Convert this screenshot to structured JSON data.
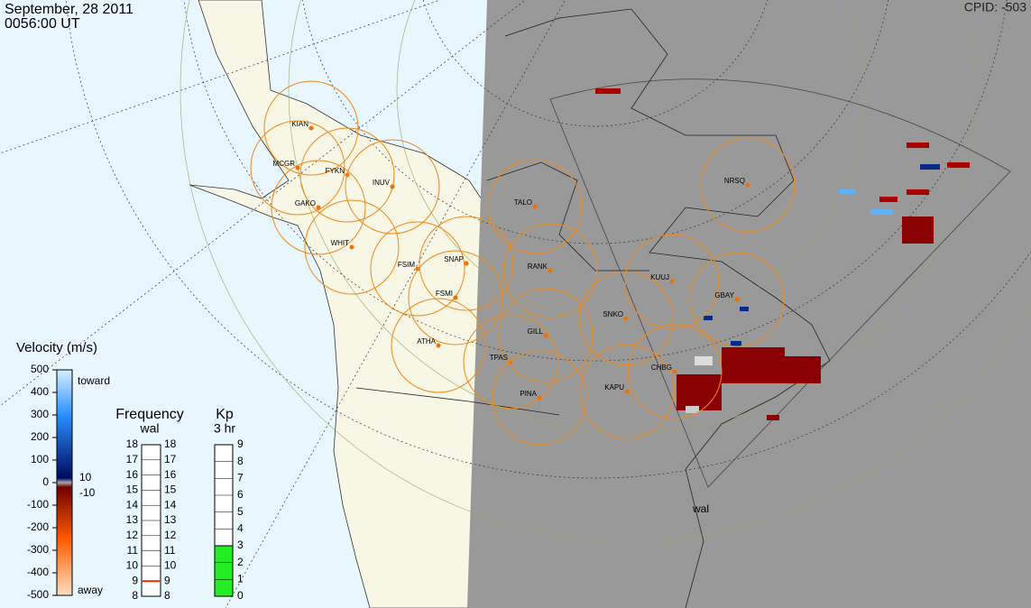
{
  "header": {
    "date": "September, 28 2011",
    "time": "0056:00 UT",
    "cpid": "CPID:  -503"
  },
  "stations": [
    {
      "label": "KIAN"
    },
    {
      "label": "MCGR"
    },
    {
      "label": "FYKN"
    },
    {
      "label": "INUV"
    },
    {
      "label": "GAKO"
    },
    {
      "label": "WHIT"
    },
    {
      "label": "FSIM"
    },
    {
      "label": "SNAP"
    },
    {
      "label": "FSMI"
    },
    {
      "label": "ATHA"
    },
    {
      "label": "TALO"
    },
    {
      "label": "RANK"
    },
    {
      "label": "GILL"
    },
    {
      "label": "TPAS"
    },
    {
      "label": "PINA"
    },
    {
      "label": "KAPU"
    },
    {
      "label": "CHBG"
    },
    {
      "label": "SNKO"
    },
    {
      "label": "KUUJ"
    },
    {
      "label": "GBAY"
    },
    {
      "label": "NRSQ"
    }
  ],
  "radar_label": "wal",
  "velocity_scale": {
    "title": "Velocity (m/s)",
    "ticks": [
      500,
      400,
      300,
      200,
      100,
      0,
      -100,
      -200,
      -300,
      -400,
      -500
    ],
    "toward": "toward",
    "away": "away",
    "ground_scatter": [
      "10",
      "-10"
    ]
  },
  "frequency_scale": {
    "title": "Frequency",
    "subtitle": "wal",
    "ticks": [
      8,
      9,
      10,
      11,
      12,
      13,
      14,
      15,
      16,
      17,
      18
    ],
    "value": 9
  },
  "kp_scale": {
    "title": "Kp",
    "subtitle": "3 hr",
    "ticks": [
      0,
      1,
      2,
      3,
      4,
      5,
      6,
      7,
      8,
      9
    ],
    "value": 3
  }
}
